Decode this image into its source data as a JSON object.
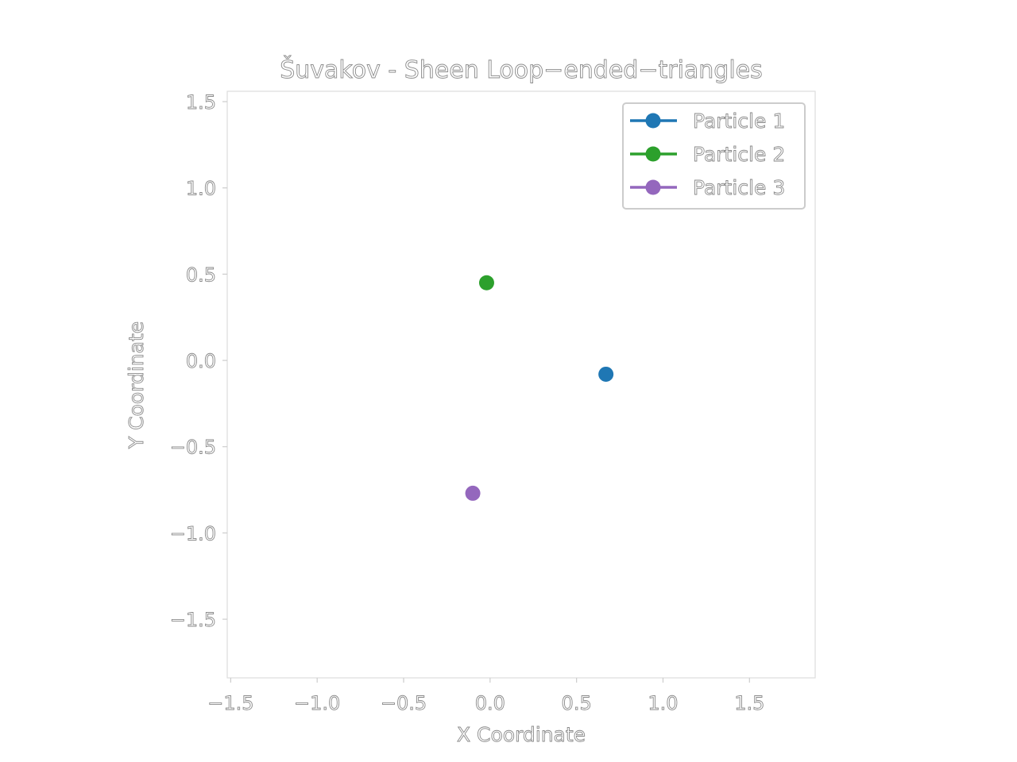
{
  "chart_data": {
    "type": "scatter",
    "title": "Šuvakov - Sheen Loop−ended−triangles",
    "xlabel": "X Coordinate",
    "ylabel": "Y Coordinate",
    "xlim": [
      -1.52,
      1.88
    ],
    "ylim": [
      -1.84,
      1.56
    ],
    "xticks": [
      -1.5,
      -1.0,
      -0.5,
      0.0,
      0.5,
      1.0,
      1.5
    ],
    "yticks": [
      -1.5,
      -1.0,
      -0.5,
      0.0,
      0.5,
      1.0,
      1.5
    ],
    "xtick_labels": [
      "−1.5",
      "−1.0",
      "−0.5",
      "0.0",
      "0.5",
      "1.0",
      "1.5"
    ],
    "ytick_labels": [
      "−1.5",
      "−1.0",
      "−0.5",
      "0.0",
      "0.5",
      "1.0",
      "1.5"
    ],
    "legend_position": "top-right",
    "grid": false,
    "series": [
      {
        "name": "Particle 1",
        "color": "#1f77b4",
        "x": [
          0.67
        ],
        "y": [
          -0.08
        ]
      },
      {
        "name": "Particle 2",
        "color": "#2ca02c",
        "x": [
          -0.02
        ],
        "y": [
          0.45
        ]
      },
      {
        "name": "Particle 3",
        "color": "#9467bd",
        "x": [
          -0.1
        ],
        "y": [
          -0.77
        ]
      }
    ]
  }
}
